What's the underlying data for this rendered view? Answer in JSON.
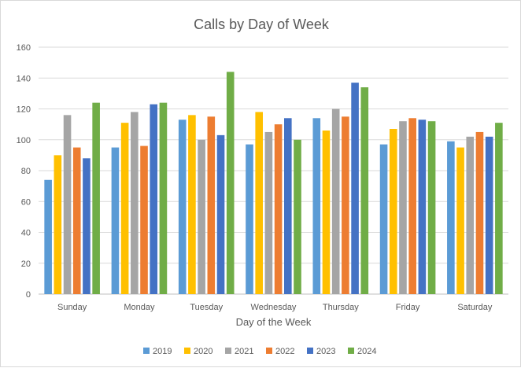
{
  "chart_data": {
    "type": "bar",
    "title": "Calls by Day of Week",
    "xlabel": "Day of the Week",
    "ylabel": "",
    "ylim": [
      0,
      160
    ],
    "yticks": [
      0,
      20,
      40,
      60,
      80,
      100,
      120,
      140,
      160
    ],
    "grid": true,
    "legend_position": "bottom",
    "categories": [
      "Sunday",
      "Monday",
      "Tuesday",
      "Wednesday",
      "Thursday",
      "Friday",
      "Saturday"
    ],
    "series": [
      {
        "name": "2019",
        "color": "#5b9bd5",
        "values": [
          74,
          95,
          113,
          97,
          114,
          97,
          99
        ]
      },
      {
        "name": "2020",
        "color": "#ffc000",
        "values": [
          90,
          111,
          116,
          118,
          106,
          107,
          95
        ]
      },
      {
        "name": "2021",
        "color": "#a5a5a5",
        "values": [
          116,
          118,
          100,
          105,
          120,
          112,
          102
        ]
      },
      {
        "name": "2022",
        "color": "#ed7d31",
        "values": [
          95,
          96,
          115,
          110,
          115,
          114,
          105
        ]
      },
      {
        "name": "2023",
        "color": "#4472c4",
        "values": [
          88,
          123,
          103,
          114,
          137,
          113,
          102
        ]
      },
      {
        "name": "2024",
        "color": "#70ad47",
        "values": [
          124,
          124,
          144,
          100,
          134,
          112,
          111
        ]
      }
    ]
  }
}
